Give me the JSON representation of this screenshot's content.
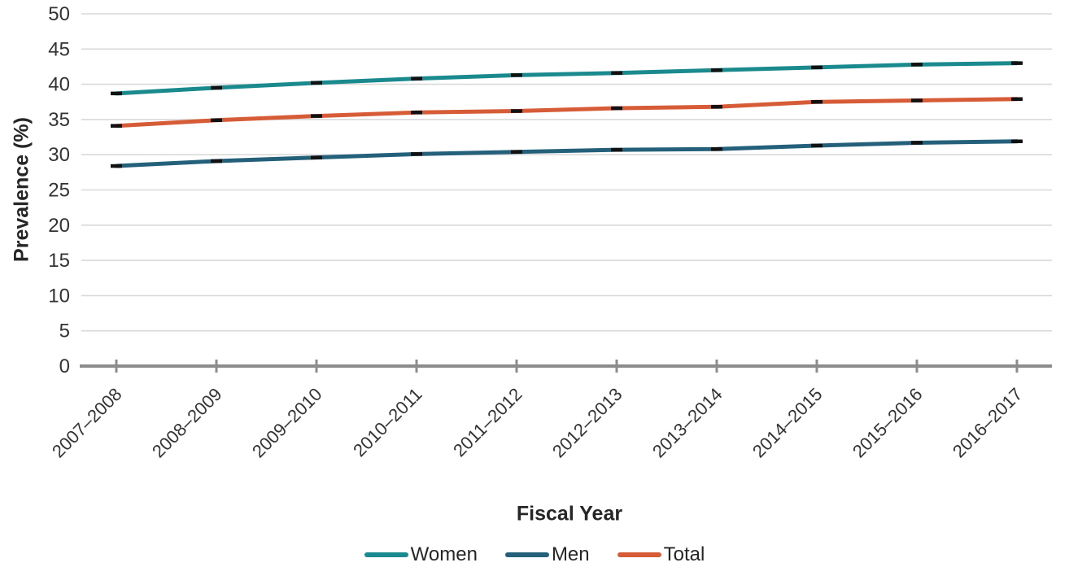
{
  "chart_data": {
    "type": "line",
    "categories": [
      "2007–2008",
      "2008–2009",
      "2009–2010",
      "2010–2011",
      "2011–2012",
      "2012–2013",
      "2013–2014",
      "2014–2015",
      "2015–2016",
      "2016–2017"
    ],
    "series": [
      {
        "name": "Women",
        "color": "#1b8a8e",
        "values": [
          38.7,
          39.5,
          40.2,
          40.8,
          41.3,
          41.6,
          42.0,
          42.4,
          42.8,
          43.0
        ]
      },
      {
        "name": "Men",
        "color": "#25607a",
        "values": [
          28.4,
          29.1,
          29.6,
          30.1,
          30.4,
          30.7,
          30.8,
          31.3,
          31.7,
          31.9
        ]
      },
      {
        "name": "Total",
        "color": "#d65b37",
        "values": [
          34.1,
          34.9,
          35.5,
          36.0,
          36.2,
          36.6,
          36.8,
          37.5,
          37.7,
          37.9
        ]
      }
    ],
    "xlabel": "Fiscal Year",
    "ylabel": "Prevalence (%)",
    "ylim": [
      0,
      50
    ],
    "ytick_step": 5,
    "grid": true,
    "legend_position": "bottom",
    "marker": "black-dash"
  },
  "styles": {
    "grid_color": "#d9d9d9",
    "axis_color": "#8c8c8c",
    "tick_text_color": "#333333",
    "marker_color": "#111111"
  }
}
